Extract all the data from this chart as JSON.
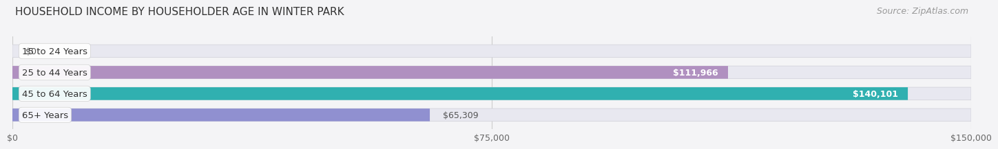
{
  "title": "HOUSEHOLD INCOME BY HOUSEHOLDER AGE IN WINTER PARK",
  "source": "Source: ZipAtlas.com",
  "categories": [
    "15 to 24 Years",
    "25 to 44 Years",
    "45 to 64 Years",
    "65+ Years"
  ],
  "values": [
    0,
    111966,
    140101,
    65309
  ],
  "bar_colors": [
    "#a8c0e0",
    "#b090c0",
    "#30b0b0",
    "#9090d0"
  ],
  "bar_bg_color": "#e8e8f0",
  "xlim": [
    0,
    150000
  ],
  "xticks": [
    0,
    75000,
    150000
  ],
  "xtick_labels": [
    "$0",
    "$75,000",
    "$150,000"
  ],
  "value_labels": [
    "$0",
    "$111,966",
    "$140,101",
    "$65,309"
  ],
  "value_label_inside": [
    false,
    true,
    true,
    false
  ],
  "title_fontsize": 11,
  "source_fontsize": 9,
  "tick_fontsize": 9,
  "cat_fontsize": 9.5,
  "val_fontsize": 9,
  "background_color": "#f4f4f6"
}
